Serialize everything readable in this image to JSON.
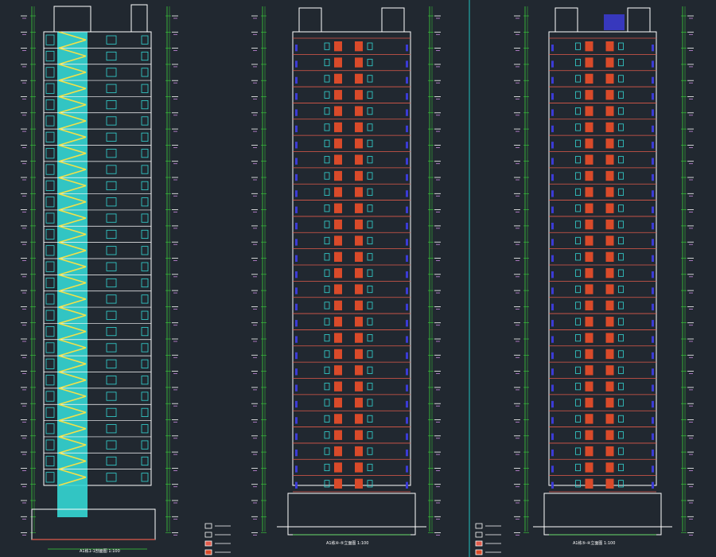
{
  "colors": {
    "background": "#212830",
    "building_outline": "#ffffff",
    "floor_line": "#e05a4a",
    "stair_fill": "#34d6d4",
    "stair_flight": "#f2e04a",
    "window_panel": "#d94a2a",
    "glazing": "#34d6d4",
    "dimension_line": "#3bd13b",
    "level_text": "#ffffff",
    "level_tag": "#c98adf",
    "column_marker": "#3b3bd6",
    "divider": "#20c0c0"
  },
  "drawings": [
    {
      "id": "section",
      "caption": "A1栋1-1剖面图",
      "scale": "1:100"
    },
    {
      "id": "elevation-a",
      "caption": "A1栋④-⑤立面图",
      "scale": "1:100"
    },
    {
      "id": "elevation-b",
      "caption": "A1栋⑤-④立面图",
      "scale": "1:100"
    }
  ],
  "legend_swatches": [
    "white",
    "white",
    "red-hatched",
    "orange-solid"
  ]
}
